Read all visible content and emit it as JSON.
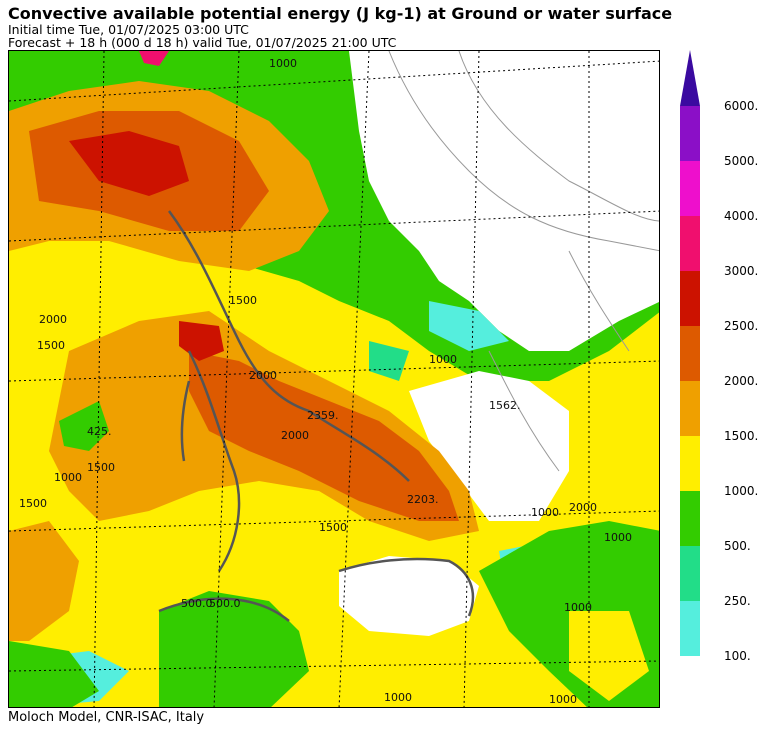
{
  "header": {
    "title": "Convective available potential energy (J kg-1) at Ground or water surface",
    "initial_time": "Initial time  Tue, 01/07/2025  03:00 UTC",
    "forecast": "Forecast  +  18 h  (000 d 18 h)  valid Tue, 01/07/2025 21:00 UTC"
  },
  "footer": {
    "credit": "Moloch Model, CNR-ISAC, Italy"
  },
  "legend": {
    "labels": [
      "6000.",
      "5000.",
      "4000.",
      "3000.",
      "2500.",
      "2000.",
      "1500.",
      "1000.",
      "500.",
      "250.",
      "100."
    ],
    "colors": [
      "#8b0fc7",
      "#ee0fcc",
      "#f00f6e",
      "#cc1200",
      "#dd5a00",
      "#efa000",
      "#ffee00",
      "#33cc00",
      "#22dd88",
      "#55eedd"
    ],
    "arrow_color": "#3a0aa0"
  },
  "map": {
    "contour_labels": [
      "1000",
      "1500",
      "2000",
      "1500",
      "425.",
      "1000",
      "1500",
      "1500",
      "2000",
      "2359.",
      "2000",
      "2203.",
      "1500",
      "1562.",
      "1000",
      "2000",
      "1000",
      "1000",
      "1000",
      "500.0",
      "500.0",
      "1000",
      "1000"
    ]
  }
}
